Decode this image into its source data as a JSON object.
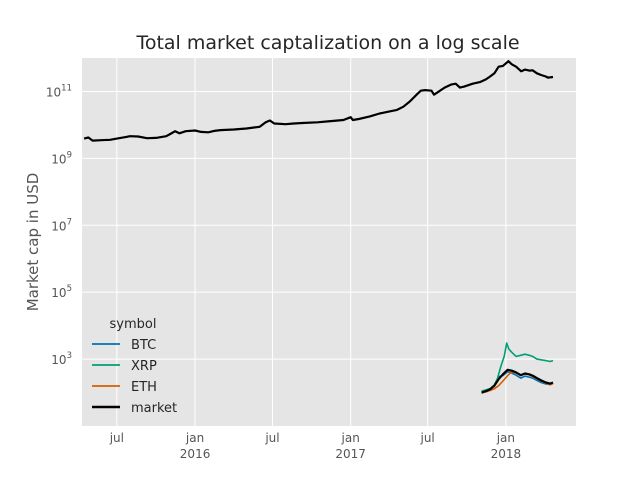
{
  "chart_data": {
    "type": "line",
    "title": "Total market captalization on a log scale",
    "xlabel": "",
    "ylabel": "Market cap in USD",
    "yscale": "log",
    "ylim": [
      10.0,
      1000000000000.0
    ],
    "xlim": [
      "2015-04-10",
      "2018-06-15"
    ],
    "yticks": [
      {
        "value": 1000.0,
        "base": "10",
        "exp": "3"
      },
      {
        "value": 100000.0,
        "base": "10",
        "exp": "5"
      },
      {
        "value": 10000000.0,
        "base": "10",
        "exp": "7"
      },
      {
        "value": 1000000000.0,
        "base": "10",
        "exp": "9"
      },
      {
        "value": 100000000000.0,
        "base": "10",
        "exp": "11"
      }
    ],
    "xticks": [
      {
        "date": "2015-07-01",
        "label": "jul",
        "year": ""
      },
      {
        "date": "2016-01-01",
        "label": "jan",
        "year": "2016"
      },
      {
        "date": "2016-07-01",
        "label": "jul",
        "year": ""
      },
      {
        "date": "2017-01-01",
        "label": "jan",
        "year": "2017"
      },
      {
        "date": "2017-07-01",
        "label": "jul",
        "year": ""
      },
      {
        "date": "2018-01-01",
        "label": "jan",
        "year": "2018"
      }
    ],
    "grid": true,
    "legend": {
      "title": "symbol",
      "position": "lower-left"
    },
    "series": [
      {
        "name": "BTC",
        "color": "#0072b2",
        "points": [
          [
            "2017-11-05",
            95
          ],
          [
            "2017-11-15",
            110
          ],
          [
            "2017-11-25",
            130
          ],
          [
            "2017-12-05",
            170
          ],
          [
            "2017-12-15",
            300
          ],
          [
            "2017-12-25",
            320
          ],
          [
            "2018-01-05",
            420
          ],
          [
            "2018-01-15",
            380
          ],
          [
            "2018-01-25",
            330
          ],
          [
            "2018-02-05",
            270
          ],
          [
            "2018-02-15",
            310
          ],
          [
            "2018-02-25",
            290
          ],
          [
            "2018-03-05",
            270
          ],
          [
            "2018-03-15",
            230
          ],
          [
            "2018-03-25",
            200
          ],
          [
            "2018-04-05",
            180
          ],
          [
            "2018-04-15",
            175
          ],
          [
            "2018-04-22",
            195
          ]
        ]
      },
      {
        "name": "XRP",
        "color": "#009e73",
        "points": [
          [
            "2017-11-05",
            110
          ],
          [
            "2017-11-15",
            120
          ],
          [
            "2017-11-25",
            130
          ],
          [
            "2017-12-05",
            160
          ],
          [
            "2017-12-12",
            260
          ],
          [
            "2017-12-20",
            600
          ],
          [
            "2017-12-28",
            1200
          ],
          [
            "2018-01-03",
            3000
          ],
          [
            "2018-01-08",
            2000
          ],
          [
            "2018-01-15",
            1600
          ],
          [
            "2018-01-25",
            1200
          ],
          [
            "2018-02-05",
            1300
          ],
          [
            "2018-02-15",
            1400
          ],
          [
            "2018-02-25",
            1300
          ],
          [
            "2018-03-05",
            1200
          ],
          [
            "2018-03-15",
            1000
          ],
          [
            "2018-03-25",
            950
          ],
          [
            "2018-04-05",
            900
          ],
          [
            "2018-04-15",
            850
          ],
          [
            "2018-04-22",
            900
          ]
        ]
      },
      {
        "name": "ETH",
        "color": "#d55e00",
        "points": [
          [
            "2017-11-05",
            100
          ],
          [
            "2017-11-15",
            105
          ],
          [
            "2017-11-25",
            115
          ],
          [
            "2017-12-05",
            130
          ],
          [
            "2017-12-15",
            160
          ],
          [
            "2017-12-25",
            220
          ],
          [
            "2018-01-05",
            320
          ],
          [
            "2018-01-15",
            420
          ],
          [
            "2018-01-25",
            380
          ],
          [
            "2018-02-05",
            330
          ],
          [
            "2018-02-15",
            360
          ],
          [
            "2018-02-25",
            340
          ],
          [
            "2018-03-05",
            300
          ],
          [
            "2018-03-15",
            260
          ],
          [
            "2018-03-25",
            220
          ],
          [
            "2018-04-05",
            190
          ],
          [
            "2018-04-15",
            170
          ],
          [
            "2018-04-22",
            185
          ]
        ]
      },
      {
        "name": "market",
        "color": "#000000",
        "points": [
          [
            "2015-04-15",
            3900000000.0
          ],
          [
            "2015-04-25",
            4200000000.0
          ],
          [
            "2015-05-05",
            3400000000.0
          ],
          [
            "2015-05-25",
            3500000000.0
          ],
          [
            "2015-06-15",
            3600000000.0
          ],
          [
            "2015-07-01",
            3900000000.0
          ],
          [
            "2015-07-20",
            4300000000.0
          ],
          [
            "2015-08-01",
            4600000000.0
          ],
          [
            "2015-08-20",
            4500000000.0
          ],
          [
            "2015-09-10",
            4000000000.0
          ],
          [
            "2015-10-01",
            4100000000.0
          ],
          [
            "2015-10-25",
            4600000000.0
          ],
          [
            "2015-11-05",
            5500000000.0
          ],
          [
            "2015-11-15",
            6500000000.0
          ],
          [
            "2015-11-25",
            5600000000.0
          ],
          [
            "2015-12-10",
            6500000000.0
          ],
          [
            "2016-01-01",
            6800000000.0
          ],
          [
            "2016-01-15",
            6200000000.0
          ],
          [
            "2016-02-01",
            6000000000.0
          ],
          [
            "2016-02-15",
            6600000000.0
          ],
          [
            "2016-03-01",
            7000000000.0
          ],
          [
            "2016-04-01",
            7300000000.0
          ],
          [
            "2016-05-01",
            7800000000.0
          ],
          [
            "2016-06-01",
            8800000000.0
          ],
          [
            "2016-06-15",
            12000000000.0
          ],
          [
            "2016-06-25",
            13500000000.0
          ],
          [
            "2016-07-05",
            11000000000.0
          ],
          [
            "2016-08-01",
            10500000000.0
          ],
          [
            "2016-08-20",
            11000000000.0
          ],
          [
            "2016-09-15",
            11500000000.0
          ],
          [
            "2016-10-15",
            12000000000.0
          ],
          [
            "2016-11-15",
            13000000000.0
          ],
          [
            "2016-12-15",
            14000000000.0
          ],
          [
            "2017-01-01",
            17000000000.0
          ],
          [
            "2017-01-06",
            14000000000.0
          ],
          [
            "2017-01-20",
            15000000000.0
          ],
          [
            "2017-02-15",
            18000000000.0
          ],
          [
            "2017-03-10",
            22000000000.0
          ],
          [
            "2017-04-01",
            25000000000.0
          ],
          [
            "2017-04-20",
            28000000000.0
          ],
          [
            "2017-05-05",
            35000000000.0
          ],
          [
            "2017-05-20",
            50000000000.0
          ],
          [
            "2017-06-05",
            80000000000.0
          ],
          [
            "2017-06-15",
            105000000000.0
          ],
          [
            "2017-06-25",
            110000000000.0
          ],
          [
            "2017-07-10",
            105000000000.0
          ],
          [
            "2017-07-16",
            80000000000.0
          ],
          [
            "2017-07-25",
            95000000000.0
          ],
          [
            "2017-08-10",
            130000000000.0
          ],
          [
            "2017-08-25",
            160000000000.0
          ],
          [
            "2017-09-05",
            170000000000.0
          ],
          [
            "2017-09-15",
            130000000000.0
          ],
          [
            "2017-09-25",
            140000000000.0
          ],
          [
            "2017-10-15",
            170000000000.0
          ],
          [
            "2017-11-01",
            190000000000.0
          ],
          [
            "2017-11-15",
            230000000000.0
          ],
          [
            "2017-11-25",
            280000000000.0
          ],
          [
            "2017-12-05",
            350000000000.0
          ],
          [
            "2017-12-15",
            550000000000.0
          ],
          [
            "2017-12-25",
            580000000000.0
          ],
          [
            "2018-01-07",
            800000000000.0
          ],
          [
            "2018-01-15",
            650000000000.0
          ],
          [
            "2018-01-25",
            550000000000.0
          ],
          [
            "2018-02-06",
            400000000000.0
          ],
          [
            "2018-02-15",
            450000000000.0
          ],
          [
            "2018-02-25",
            420000000000.0
          ],
          [
            "2018-03-05",
            430000000000.0
          ],
          [
            "2018-03-15",
            350000000000.0
          ],
          [
            "2018-03-25",
            310000000000.0
          ],
          [
            "2018-04-05",
            280000000000.0
          ],
          [
            "2018-04-10",
            260000000000.0
          ],
          [
            "2018-04-22",
            270000000000.0
          ]
        ]
      },
      {
        "name": "market",
        "color": "#000000",
        "points": [
          [
            "2017-11-05",
            100
          ],
          [
            "2017-11-15",
            110
          ],
          [
            "2017-11-25",
            125
          ],
          [
            "2017-12-05",
            160
          ],
          [
            "2017-12-15",
            250
          ],
          [
            "2017-12-25",
            350
          ],
          [
            "2018-01-05",
            480
          ],
          [
            "2018-01-15",
            450
          ],
          [
            "2018-01-25",
            400
          ],
          [
            "2018-02-05",
            330
          ],
          [
            "2018-02-15",
            370
          ],
          [
            "2018-02-25",
            350
          ],
          [
            "2018-03-05",
            320
          ],
          [
            "2018-03-15",
            270
          ],
          [
            "2018-03-25",
            230
          ],
          [
            "2018-04-05",
            200
          ],
          [
            "2018-04-15",
            185
          ],
          [
            "2018-04-22",
            200
          ]
        ]
      }
    ]
  }
}
